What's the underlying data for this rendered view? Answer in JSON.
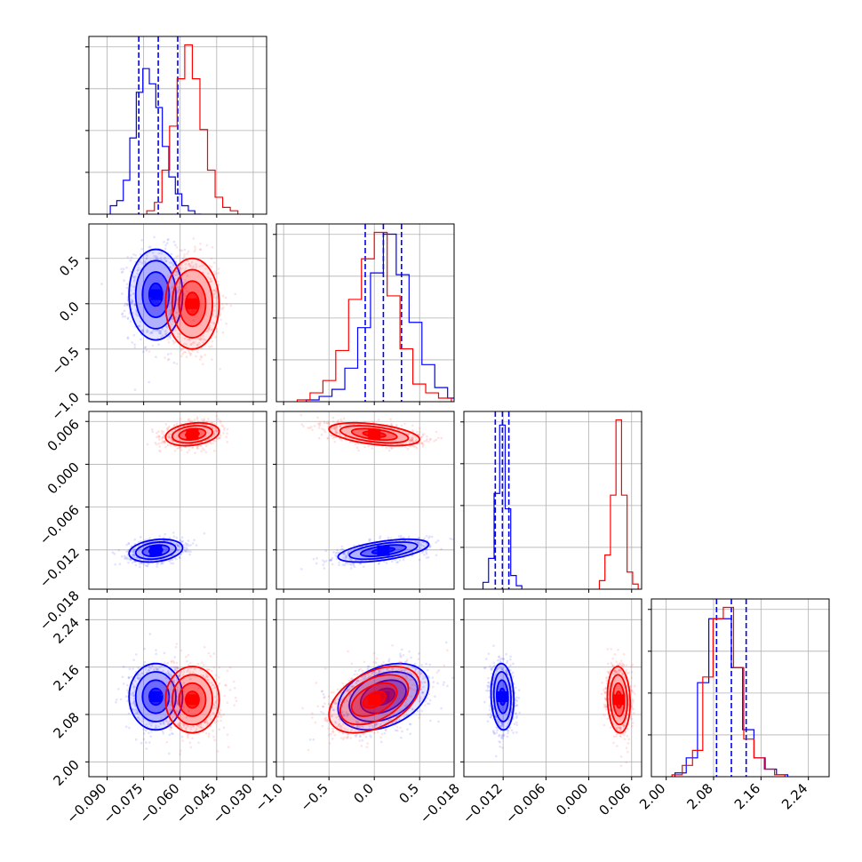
{
  "chart_data": {
    "type": "corner",
    "grid": true,
    "colors": {
      "blue": "#0000ff",
      "red": "#ff0000"
    },
    "parameters": [
      {
        "ticks": [
          -0.09,
          -0.075,
          -0.06,
          -0.045,
          -0.03
        ],
        "tick_labels": [
          "−0.090",
          "−0.075",
          "−0.060",
          "−0.045",
          "−0.030"
        ],
        "range": [
          -0.0975,
          -0.0245
        ]
      },
      {
        "ticks": [
          -1.0,
          -0.5,
          0.0,
          0.5
        ],
        "tick_labels": [
          "−1.0",
          "−0.5",
          "0.0",
          "0.5"
        ],
        "range": [
          -1.08,
          0.88
        ]
      },
      {
        "ticks": [
          -0.018,
          -0.012,
          -0.006,
          0.0,
          0.006
        ],
        "tick_labels": [
          "−0.018",
          "−0.012",
          "−0.006",
          "0.000",
          "0.006"
        ],
        "range": [
          -0.0175,
          0.0074
        ]
      },
      {
        "ticks": [
          2.0,
          2.08,
          2.16,
          2.24
        ],
        "tick_labels": [
          "2.00",
          "2.08",
          "2.16",
          "2.24"
        ],
        "range": [
          1.975,
          2.275
        ]
      }
    ],
    "series": [
      {
        "color": "#0000ff",
        "mean": [
          -0.07,
          0.1,
          -0.0121,
          2.11
        ],
        "std": [
          0.0055,
          0.25,
          0.0008,
          0.028
        ],
        "corr": {
          "0-1": 0.0,
          "0-2": 0.25,
          "0-3": 0.0,
          "1-2": 0.55,
          "1-3": 0.35,
          "2-3": -0.1
        },
        "quantiles": [
          [
            -0.077,
            -0.069,
            -0.061
          ],
          [
            -0.1,
            0.1,
            0.3
          ],
          [
            -0.0131,
            -0.0121,
            -0.0112
          ],
          [
            2.085,
            2.11,
            2.135
          ]
        ],
        "histograms": [
          [
            0.05,
            0.08,
            0.2,
            0.45,
            0.72,
            0.86,
            0.77,
            0.63,
            0.4,
            0.22,
            0.12,
            0.05,
            0.02,
            0
          ],
          [
            0.01,
            0.03,
            0.07,
            0.19,
            0.42,
            0.73,
            0.95,
            0.72,
            0.45,
            0.21,
            0.08,
            0.02
          ],
          [
            0.04,
            0.18,
            0.56,
            0.96,
            0.47,
            0.08,
            0.02
          ],
          [
            0.02,
            0.1,
            0.5,
            0.84,
            0.84,
            0.58,
            0.25,
            0.1,
            0.04,
            0.01
          ]
        ]
      },
      {
        "color": "#ff0000",
        "mean": [
          -0.055,
          0.0,
          0.0042,
          2.105
        ],
        "std": [
          0.0055,
          0.25,
          0.0008,
          0.028
        ],
        "corr": {
          "0-1": 0.0,
          "0-2": 0.25,
          "0-3": 0.0,
          "1-2": -0.45,
          "1-3": 0.45,
          "2-3": -0.1
        },
        "quantiles": null,
        "histograms": [
          [
            0.02,
            0.07,
            0.26,
            0.52,
            0.8,
            1.0,
            0.8,
            0.5,
            0.26,
            0.1,
            0.04,
            0.02
          ],
          [
            0.01,
            0.05,
            0.12,
            0.29,
            0.58,
            0.81,
            0.96,
            0.6,
            0.3,
            0.1,
            0.05,
            0.02
          ],
          [
            0.05,
            0.2,
            0.55,
            0.99,
            0.55,
            0.1,
            0.03
          ],
          [
            0.01,
            0.06,
            0.14,
            0.53,
            0.84,
            0.9,
            0.58,
            0.2,
            0.1,
            0.04,
            0.01
          ]
        ]
      }
    ]
  }
}
